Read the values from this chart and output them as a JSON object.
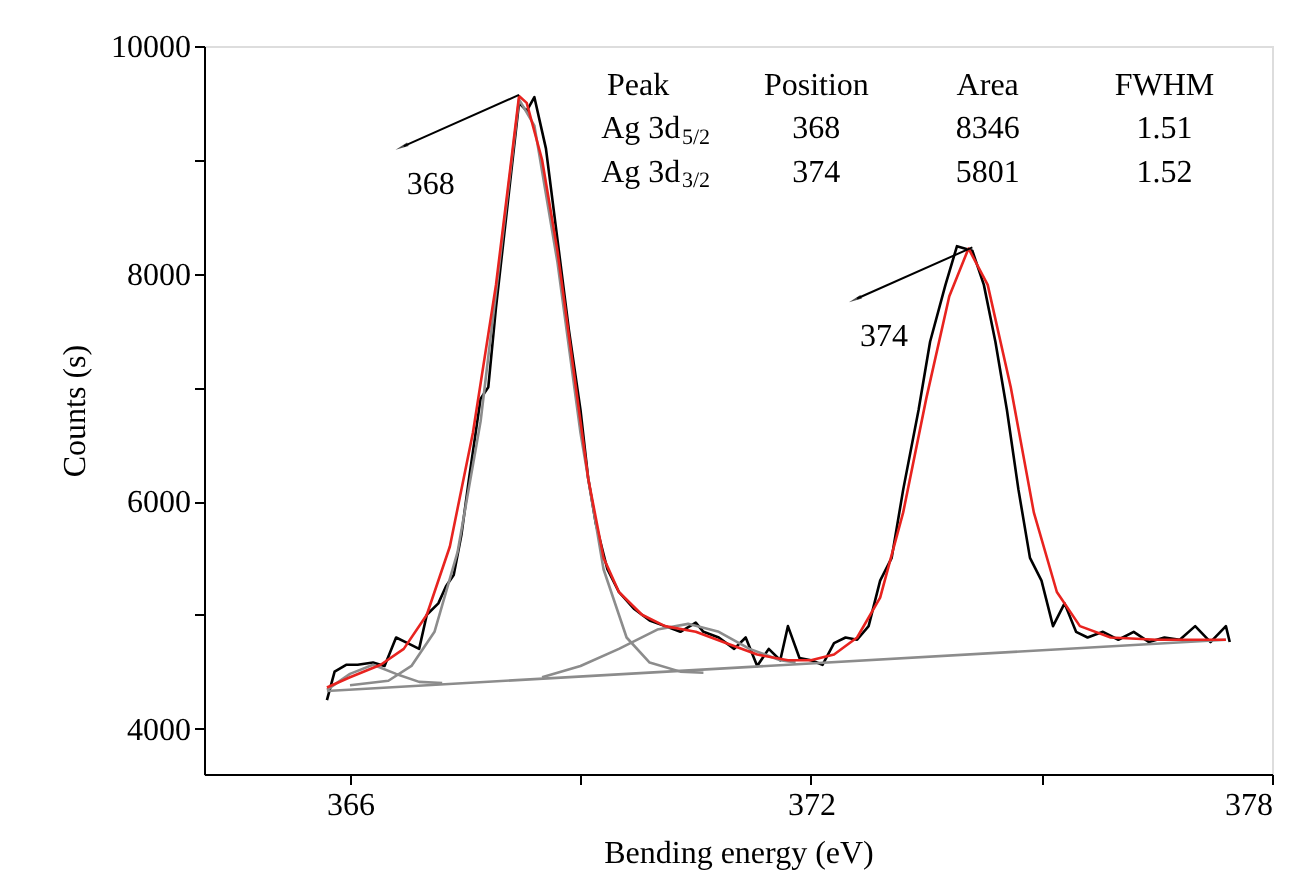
{
  "chart_data": {
    "type": "line",
    "xlabel": "Bending energy (eV)",
    "ylabel": "Counts (s)",
    "xlim": [
      364.1,
      378
    ],
    "xticks": [
      366,
      {
        "value": 369,
        "label": null
      },
      372,
      {
        "value": 375,
        "label": null
      },
      378
    ],
    "ylim": [
      3600,
      10000
    ],
    "yticks": [
      4000,
      {
        "value": 5000,
        "label": null
      },
      6000,
      {
        "value": 7000,
        "label": null
      },
      8000,
      {
        "value": 9000,
        "label": null
      },
      10000
    ],
    "grid": false,
    "marker": "none",
    "line_style": "solid",
    "series": [
      {
        "color": "#000000",
        "x": [
          365.7,
          365.8,
          365.95,
          366.1,
          366.3,
          366.45,
          366.6,
          366.75,
          366.9,
          367.0,
          367.15,
          367.25,
          367.35,
          367.45,
          367.55,
          367.7,
          367.8,
          367.9,
          368.0,
          368.1,
          368.2,
          368.3,
          368.4,
          368.55,
          368.7,
          368.85,
          369.0,
          369.1,
          369.2,
          369.35,
          369.5,
          369.7,
          369.9,
          370.1,
          370.3,
          370.5,
          370.6,
          370.8,
          371.0,
          371.15,
          371.3,
          371.45,
          371.6,
          371.7,
          371.85,
          372.0,
          372.15,
          372.3,
          372.45,
          372.6,
          372.75,
          372.9,
          373.05,
          373.2,
          373.4,
          373.55,
          373.75,
          373.9,
          374.1,
          374.25,
          374.4,
          374.55,
          374.7,
          374.85,
          375.0,
          375.15,
          375.3,
          375.45,
          375.6,
          375.8,
          376.0,
          376.2,
          376.4,
          376.6,
          376.8,
          377.0,
          377.2,
          377.4,
          377.45
        ],
        "values": [
          4250,
          4500,
          4560,
          4560,
          4580,
          4550,
          4800,
          4750,
          4700,
          5000,
          5100,
          5250,
          5350,
          5700,
          6200,
          6900,
          7000,
          7700,
          8300,
          8900,
          9500,
          9430,
          9550,
          9100,
          8300,
          7500,
          6800,
          6200,
          5800,
          5400,
          5200,
          5050,
          4950,
          4900,
          4850,
          4930,
          4850,
          4800,
          4700,
          4800,
          4550,
          4700,
          4600,
          4900,
          4620,
          4600,
          4560,
          4750,
          4800,
          4780,
          4900,
          5300,
          5500,
          6100,
          6800,
          7400,
          7900,
          8240,
          8200,
          7900,
          7400,
          6800,
          6100,
          5500,
          5300,
          4900,
          5100,
          4850,
          4800,
          4850,
          4780,
          4850,
          4760,
          4800,
          4780,
          4900,
          4760,
          4900,
          4760
        ]
      },
      {
        "color": "#8c8c8c",
        "x": [
          365.7,
          377.4
        ],
        "values": [
          4330,
          4780
        ]
      },
      {
        "color": "#8c8c8c",
        "x": [
          365.7,
          366.0,
          366.3,
          366.6,
          366.9,
          367.2
        ],
        "values": [
          4340,
          4480,
          4560,
          4480,
          4410,
          4400
        ]
      },
      {
        "color": "#8c8c8c",
        "x": [
          366.0,
          366.5,
          366.8,
          367.1,
          367.4,
          367.7,
          368.0,
          368.2,
          368.4,
          368.7,
          369.0,
          369.3,
          369.6,
          369.9,
          370.3,
          370.6
        ],
        "values": [
          4380,
          4420,
          4550,
          4850,
          5550,
          6700,
          8400,
          9530,
          9300,
          8100,
          6600,
          5400,
          4800,
          4580,
          4500,
          4490
        ]
      },
      {
        "color": "#8c8c8c",
        "x": [
          368.5,
          369.0,
          369.5,
          370.0,
          370.4,
          370.8,
          371.2,
          371.6,
          371.8
        ],
        "values": [
          4450,
          4550,
          4700,
          4870,
          4920,
          4850,
          4700,
          4600,
          4580
        ]
      },
      {
        "color": "#e8231f",
        "x": [
          365.7,
          366.0,
          366.4,
          366.7,
          367.0,
          367.3,
          367.6,
          367.9,
          368.1,
          368.2,
          368.3,
          368.5,
          368.7,
          368.9,
          369.1,
          369.3,
          369.5,
          369.8,
          370.1,
          370.5,
          370.9,
          371.3,
          371.7,
          372.0,
          372.3,
          372.6,
          372.9,
          373.2,
          373.5,
          373.8,
          374.05,
          374.3,
          374.6,
          374.9,
          375.2,
          375.5,
          375.9,
          376.5,
          377.4
        ],
        "values": [
          4360,
          4450,
          4560,
          4700,
          5000,
          5600,
          6600,
          7900,
          9000,
          9560,
          9500,
          9000,
          8200,
          7200,
          6200,
          5500,
          5200,
          5000,
          4900,
          4850,
          4750,
          4650,
          4600,
          4600,
          4650,
          4800,
          5150,
          5900,
          6900,
          7800,
          8220,
          7900,
          7000,
          5900,
          5200,
          4900,
          4800,
          4780,
          4780
        ]
      }
    ],
    "annotations": [
      {
        "text": "368",
        "x": 368.2,
        "y": 9570
      },
      {
        "text": "374",
        "x": 374.1,
        "y": 8230
      },
      "Peak",
      "Position",
      "Area",
      "FWHM",
      "Ag 3d$_{5/2}$",
      "368",
      "8346",
      "1.51",
      "Ag 3d$_{3/2}$",
      "374",
      "5801",
      "1.52"
    ]
  }
}
